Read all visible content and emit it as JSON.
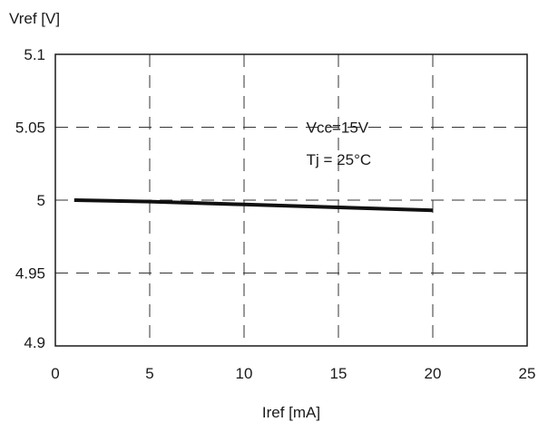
{
  "chart_data": {
    "type": "line",
    "title": "",
    "xlabel": "Iref [mA]",
    "ylabel": "Vref [V]",
    "xlim": [
      0,
      25
    ],
    "ylim": [
      4.9,
      5.1
    ],
    "x_ticks": [
      0,
      5,
      10,
      15,
      20,
      25
    ],
    "x_tick_labels": [
      "0",
      "5",
      "10",
      "15",
      "20",
      "25"
    ],
    "y_ticks": [
      4.9,
      4.95,
      5,
      5.05,
      5.1
    ],
    "y_tick_labels": [
      "4.9",
      "4.95",
      "5",
      "5.05",
      "5.1"
    ],
    "grid": true,
    "series": [
      {
        "x": [
          1,
          5,
          10,
          15,
          20
        ],
        "y": [
          5.0,
          4.999,
          4.997,
          4.995,
          4.993
        ],
        "color": "#111111"
      }
    ],
    "annotations": [
      {
        "text": "Vcc=15V",
        "x": 13.3,
        "y": 5.05
      },
      {
        "text": "Tj = 25°C",
        "x": 13.3,
        "y": 5.028
      }
    ]
  }
}
